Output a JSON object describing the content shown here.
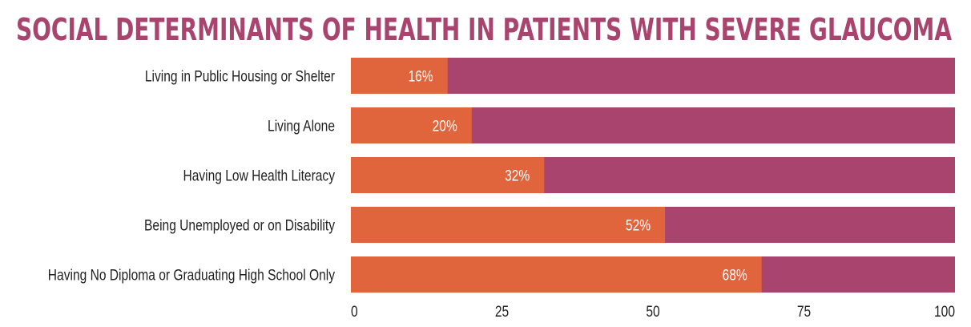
{
  "chart_data": {
    "type": "bar",
    "orientation": "horizontal",
    "stacked_to_100": true,
    "title": "SOCIAL DETERMINANTS OF HEALTH IN PATIENTS WITH SEVERE GLAUCOMA",
    "categories": [
      "Living in Public Housing or Shelter",
      "Living Alone",
      "Having Low Health Literacy",
      "Being Unemployed or on Disability",
      "Having No Diploma or Graduating High School Only"
    ],
    "values": [
      16,
      20,
      32,
      52,
      68
    ],
    "data_labels": [
      "16%",
      "20%",
      "32%",
      "52%",
      "68%"
    ],
    "xlim": [
      0,
      100
    ],
    "xticks": [
      "0",
      "25",
      "50",
      "75",
      "100"
    ],
    "grid": false,
    "legend": "none",
    "colors": {
      "value": "#e0643c",
      "remainder": "#a8446e",
      "title": "#a8446e"
    }
  }
}
